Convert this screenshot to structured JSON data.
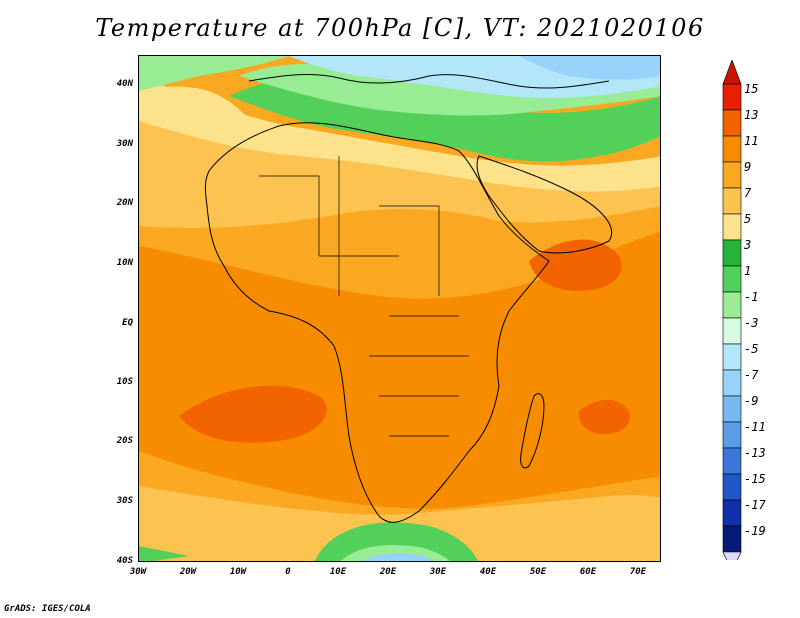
{
  "title": "Temperature at 700hPa [C], VT: 2021020106",
  "lat_ticks": [
    "40N",
    "30N",
    "20N",
    "10N",
    "EQ",
    "10S",
    "20S",
    "30S",
    "40S"
  ],
  "lon_ticks": [
    "30W",
    "20W",
    "10W",
    "0",
    "10E",
    "20E",
    "30E",
    "40E",
    "50E",
    "60E",
    "70E"
  ],
  "colorbar": {
    "labels": [
      "15",
      "13",
      "11",
      "9",
      "7",
      "5",
      "3",
      "1",
      "-1",
      "-3",
      "-5",
      "-7",
      "-9",
      "-11",
      "-13",
      "-15",
      "-17",
      "-19"
    ],
    "colors": [
      "#e81e00",
      "#f26400",
      "#f88c00",
      "#faa822",
      "#fcc350",
      "#fde28c",
      "#28b43c",
      "#52d05a",
      "#98ec94",
      "#d8fae0",
      "#b4e6fa",
      "#96d2fa",
      "#78b8f0",
      "#5a9ce6",
      "#3c78dc",
      "#2056c8",
      "#0f30a8",
      "#061a78"
    ],
    "top_triangle_color": "#c81400",
    "bottom_triangle_color": "#dcdcfa"
  },
  "credit": "GrADS: IGES/COLA"
}
